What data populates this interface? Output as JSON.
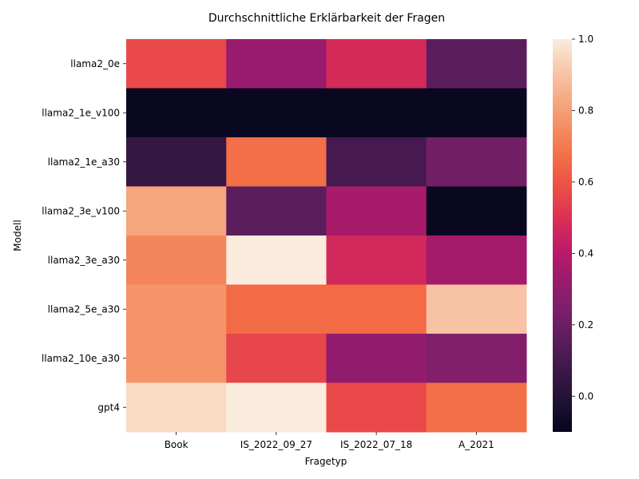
{
  "chart_data": {
    "type": "heatmap",
    "title": "Durchschnittliche Erklärbarkeit der Fragen",
    "xlabel": "Fragetyp",
    "ylabel": "Modell",
    "x_categories": [
      "Book",
      "IS_2022_09_27",
      "IS_2022_07_18",
      "A_2021"
    ],
    "y_categories": [
      "llama2_0e",
      "llama2_1e_v100",
      "llama2_1e_a30",
      "llama2_3e_v100",
      "llama2_3e_a30",
      "llama2_5e_a30",
      "llama2_10e_a30",
      "gpt4"
    ],
    "values": [
      [
        0.57,
        0.32,
        0.48,
        0.16
      ],
      [
        -0.08,
        -0.08,
        -0.08,
        -0.08
      ],
      [
        0.05,
        0.67,
        0.1,
        0.22
      ],
      [
        0.82,
        0.16,
        0.36,
        -0.08
      ],
      [
        0.73,
        1.0,
        0.47,
        0.35
      ],
      [
        0.77,
        0.66,
        0.66,
        0.9
      ],
      [
        0.77,
        0.56,
        0.3,
        0.26
      ],
      [
        0.96,
        1.0,
        0.57,
        0.67
      ]
    ],
    "colorbar": {
      "vmin": -0.1,
      "vmax": 1.0,
      "ticks": [
        "0.0",
        "0.2",
        "0.4",
        "0.6",
        "0.8",
        "1.0"
      ],
      "colormap": "rocket",
      "colormap_stops": [
        "#03051a",
        "#1f1234",
        "#3b1848",
        "#5a1d5b",
        "#7a1f69",
        "#9a1b6e",
        "#bb1a68",
        "#d92e56",
        "#ea4c48",
        "#f26c45",
        "#f48b5f",
        "#f6a982",
        "#f8c9ab",
        "#faebdd"
      ]
    }
  }
}
